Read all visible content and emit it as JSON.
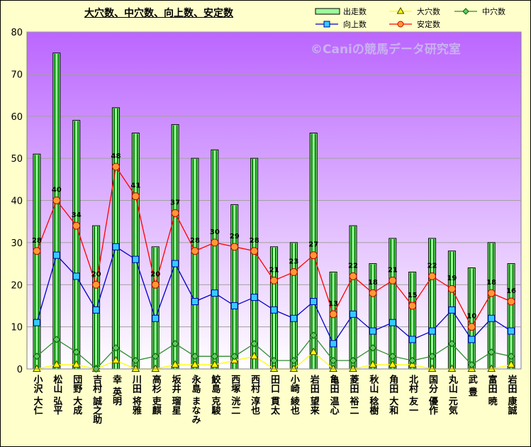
{
  "chart_data": {
    "type": "bar",
    "title": "大穴数、中穴数、向上数、安定数",
    "watermark": "©Caniの競馬データ研究室",
    "categories": [
      "小沢 大仁",
      "松山 弘平",
      "団野 大成",
      "吉村 誠之助",
      "幸 英明",
      "川田 将雅",
      "高杉 吏麒",
      "坂井 瑠星",
      "永島 まなみ",
      "鮫島 克駿",
      "西塚 洸二",
      "西村 淳也",
      "田口 貫太",
      "小崎 綾也",
      "岩田 望来",
      "亀田 温心",
      "菱田 裕二",
      "秋山 稔樹",
      "角田 大和",
      "北村 友一",
      "国分 優作",
      "丸山 元気",
      "武 豊",
      "富田 暁",
      "岩田 康誠"
    ],
    "ylim": [
      0,
      80
    ],
    "yticks": [
      0,
      10,
      20,
      30,
      40,
      50,
      60,
      70,
      80
    ],
    "grid": true,
    "legend_position": "top-right",
    "series": [
      {
        "name": "出走数",
        "type": "bar",
        "color": "#99FF99",
        "values": [
          51,
          75,
          59,
          34,
          62,
          56,
          29,
          58,
          50,
          52,
          39,
          50,
          29,
          30,
          56,
          23,
          34,
          25,
          31,
          23,
          31,
          28,
          24,
          30,
          25
        ]
      },
      {
        "name": "大穴数",
        "type": "line",
        "color": "#FFFF00",
        "marker": "triangle",
        "values": [
          0,
          1,
          1,
          0,
          2,
          0,
          0,
          1,
          1,
          1,
          2,
          3,
          0,
          0,
          4,
          0,
          0,
          1,
          1,
          1,
          0,
          0,
          0,
          0,
          1
        ]
      },
      {
        "name": "中穴数",
        "type": "line",
        "color": "#2E8B2E",
        "marker": "diamond",
        "values": [
          3,
          7,
          4,
          0,
          5,
          2,
          3,
          6,
          3,
          3,
          3,
          6,
          2,
          2,
          8,
          2,
          2,
          5,
          3,
          2,
          3,
          6,
          1,
          4,
          3
        ]
      },
      {
        "name": "向上数",
        "type": "line",
        "color": "#0000CC",
        "marker": "square",
        "values": [
          11,
          27,
          22,
          14,
          29,
          26,
          12,
          25,
          16,
          18,
          15,
          17,
          14,
          12,
          16,
          6,
          13,
          9,
          11,
          7,
          9,
          14,
          7,
          12,
          9
        ]
      },
      {
        "name": "安定数",
        "type": "line",
        "color": "#FF0000",
        "marker": "circle",
        "data_labels": true,
        "values": [
          28,
          40,
          34,
          20,
          48,
          41,
          20,
          37,
          28,
          30,
          29,
          28,
          21,
          23,
          27,
          13,
          22,
          18,
          21,
          15,
          22,
          19,
          10,
          18,
          16
        ]
      }
    ]
  }
}
